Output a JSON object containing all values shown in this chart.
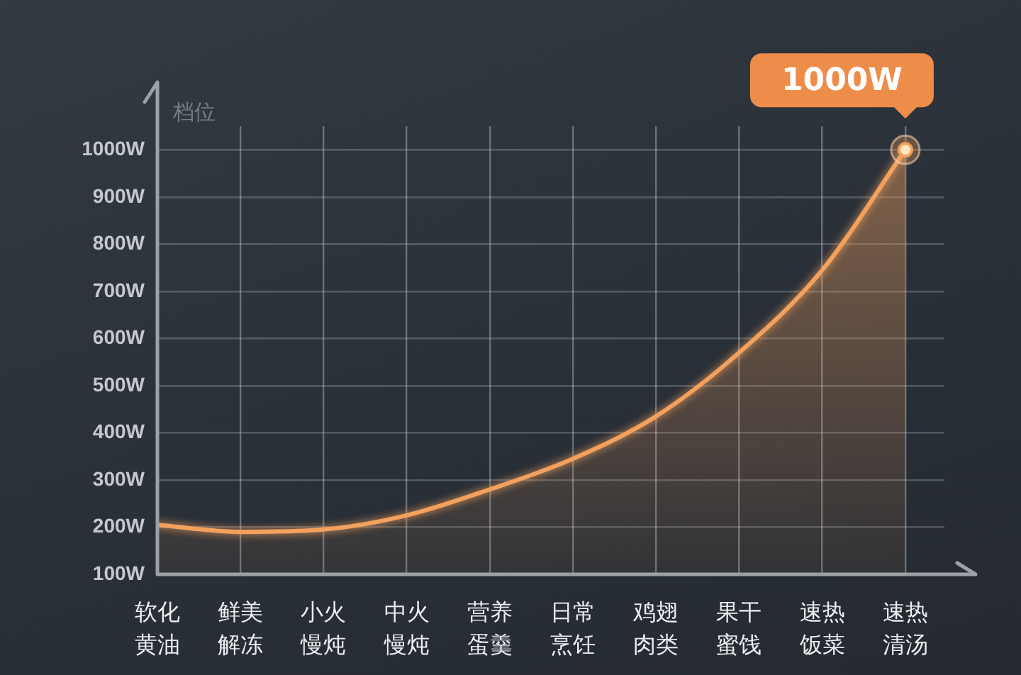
{
  "chart_data": {
    "type": "area",
    "ylabel": "档位",
    "categories": [
      "软化黄油",
      "鲜美解冻",
      "小火慢炖",
      "中火慢炖",
      "营养蛋羹",
      "日常烹饪",
      "鸡翅肉类",
      "果干蜜饯",
      "速热饭菜",
      "速热清汤"
    ],
    "series": [
      {
        "color": "#f3a15e",
        "values": [
          205,
          190,
          195,
          225,
          280,
          345,
          435,
          570,
          745,
          1000
        ]
      }
    ],
    "ylim": [
      100,
      1050
    ],
    "yticks": [
      {
        "value": 100,
        "label": "100W"
      },
      {
        "value": 200,
        "label": "200W"
      },
      {
        "value": 300,
        "label": "300W"
      },
      {
        "value": 400,
        "label": "400W"
      },
      {
        "value": 500,
        "label": "500W"
      },
      {
        "value": 600,
        "label": "600W"
      },
      {
        "value": 700,
        "label": "700W"
      },
      {
        "value": 800,
        "label": "800W"
      },
      {
        "value": 900,
        "label": "900W"
      },
      {
        "value": 1000,
        "label": "1000W"
      }
    ],
    "annotations": [
      {
        "text": "1000W",
        "x": "速热清汤",
        "y": 1000
      }
    ],
    "grid": true,
    "legend": false,
    "marker": "none",
    "line_style": "solid"
  }
}
